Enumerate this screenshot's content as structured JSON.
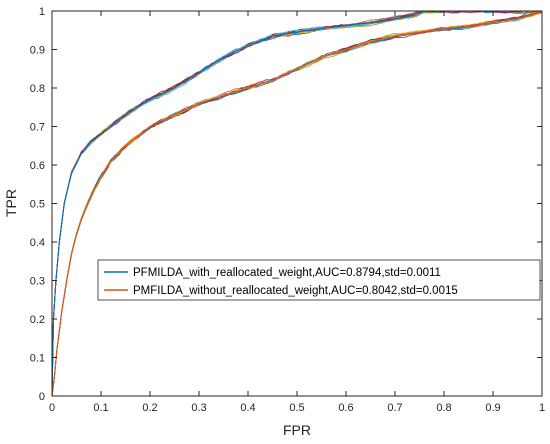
{
  "chart_data": {
    "type": "line",
    "xlabel": "FPR",
    "ylabel": "TPR",
    "xlim": [
      0,
      1
    ],
    "ylim": [
      0,
      1
    ],
    "xticks": [
      "0",
      "0.1",
      "0.2",
      "0.3",
      "0.4",
      "0.5",
      "0.6",
      "0.7",
      "0.8",
      "0.9",
      "1"
    ],
    "yticks": [
      "0",
      "0.1",
      "0.2",
      "0.3",
      "0.4",
      "0.5",
      "0.6",
      "0.7",
      "0.8",
      "0.9",
      "1"
    ],
    "grid": false,
    "legend_position": "lower-right",
    "series": [
      {
        "name": "PFMILDA_with_reallocated_weight,AUC=0.8794,std=0.0011",
        "color": "#0072BD",
        "x": [
          0,
          0.003,
          0.008,
          0.015,
          0.025,
          0.04,
          0.06,
          0.08,
          0.1,
          0.13,
          0.16,
          0.2,
          0.25,
          0.3,
          0.35,
          0.4,
          0.45,
          0.5,
          0.55,
          0.6,
          0.65,
          0.7,
          0.74,
          0.76,
          1.0
        ],
        "y": [
          0,
          0.2,
          0.3,
          0.4,
          0.5,
          0.58,
          0.63,
          0.66,
          0.68,
          0.71,
          0.74,
          0.77,
          0.8,
          0.84,
          0.88,
          0.91,
          0.935,
          0.945,
          0.955,
          0.962,
          0.97,
          0.98,
          0.99,
          1.0,
          1.0
        ]
      },
      {
        "name": "PMFILDA_without_reallocated_weight,AUC=0.8042,std=0.0015",
        "color": "#D95319",
        "x": [
          0,
          0.005,
          0.01,
          0.02,
          0.03,
          0.04,
          0.05,
          0.06,
          0.08,
          0.1,
          0.12,
          0.15,
          0.18,
          0.2,
          0.25,
          0.3,
          0.35,
          0.4,
          0.45,
          0.5,
          0.55,
          0.6,
          0.65,
          0.7,
          0.75,
          0.8,
          0.85,
          0.9,
          0.95,
          0.98,
          1.0
        ],
        "y": [
          0,
          0.05,
          0.12,
          0.22,
          0.3,
          0.37,
          0.42,
          0.46,
          0.52,
          0.57,
          0.61,
          0.65,
          0.68,
          0.7,
          0.73,
          0.76,
          0.78,
          0.8,
          0.82,
          0.85,
          0.88,
          0.9,
          0.92,
          0.935,
          0.945,
          0.955,
          0.96,
          0.97,
          0.98,
          0.99,
          1.0
        ]
      }
    ]
  }
}
